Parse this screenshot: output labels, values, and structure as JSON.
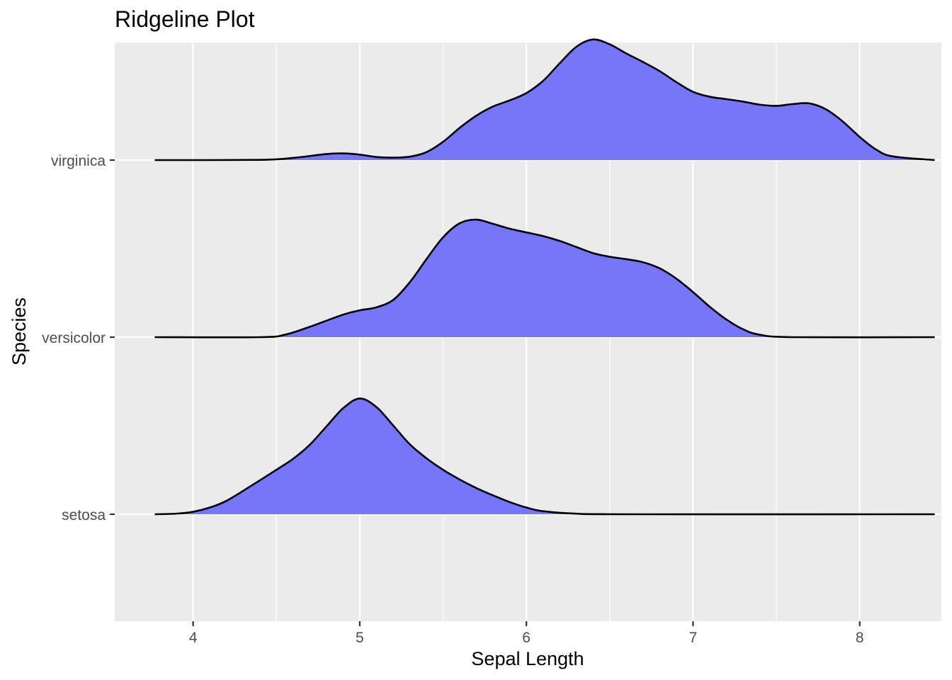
{
  "chart_data": {
    "type": "ridgeline",
    "title": "Ridgeline Plot",
    "xlabel": "Sepal Length",
    "ylabel": "Species",
    "xlim": [
      3.53,
      8.49
    ],
    "x_ticks": [
      4,
      5,
      6,
      7,
      8
    ],
    "x_tick_labels": [
      "4",
      "5",
      "6",
      "7",
      "8"
    ],
    "x_minor_ticks": [
      4.5,
      5.5,
      6.5,
      7.5,
      8.5
    ],
    "categories": [
      "setosa",
      "versicolor",
      "virginica"
    ],
    "grid": true,
    "legend": "none",
    "colors": {
      "fill": "#7676F6",
      "outline": "#000000",
      "panel": "#EBEBEB",
      "grid": "#FFFFFF"
    },
    "series": [
      {
        "name": "setosa",
        "density_scaled": [
          [
            3.77,
            0.0
          ],
          [
            3.9,
            0.005
          ],
          [
            4.0,
            0.02
          ],
          [
            4.1,
            0.055
          ],
          [
            4.2,
            0.11
          ],
          [
            4.35,
            0.235
          ],
          [
            4.5,
            0.365
          ],
          [
            4.6,
            0.455
          ],
          [
            4.7,
            0.57
          ],
          [
            4.8,
            0.72
          ],
          [
            4.9,
            0.87
          ],
          [
            5.0,
            0.95
          ],
          [
            5.1,
            0.88
          ],
          [
            5.2,
            0.73
          ],
          [
            5.3,
            0.575
          ],
          [
            5.4,
            0.46
          ],
          [
            5.5,
            0.365
          ],
          [
            5.6,
            0.285
          ],
          [
            5.7,
            0.215
          ],
          [
            5.8,
            0.155
          ],
          [
            5.9,
            0.1
          ],
          [
            6.0,
            0.055
          ],
          [
            6.1,
            0.025
          ],
          [
            6.3,
            0.005
          ],
          [
            6.6,
            0.0
          ],
          [
            8.45,
            0.0
          ]
        ]
      },
      {
        "name": "versicolor",
        "density_scaled": [
          [
            3.77,
            0.0
          ],
          [
            4.4,
            0.0
          ],
          [
            4.55,
            0.02
          ],
          [
            4.7,
            0.085
          ],
          [
            4.9,
            0.185
          ],
          [
            5.0,
            0.22
          ],
          [
            5.1,
            0.245
          ],
          [
            5.2,
            0.305
          ],
          [
            5.3,
            0.45
          ],
          [
            5.4,
            0.64
          ],
          [
            5.5,
            0.82
          ],
          [
            5.6,
            0.935
          ],
          [
            5.7,
            0.965
          ],
          [
            5.8,
            0.93
          ],
          [
            5.9,
            0.89
          ],
          [
            6.0,
            0.86
          ],
          [
            6.1,
            0.83
          ],
          [
            6.2,
            0.79
          ],
          [
            6.3,
            0.74
          ],
          [
            6.4,
            0.69
          ],
          [
            6.5,
            0.66
          ],
          [
            6.6,
            0.64
          ],
          [
            6.7,
            0.615
          ],
          [
            6.8,
            0.565
          ],
          [
            6.9,
            0.48
          ],
          [
            7.0,
            0.37
          ],
          [
            7.1,
            0.25
          ],
          [
            7.2,
            0.145
          ],
          [
            7.3,
            0.065
          ],
          [
            7.4,
            0.02
          ],
          [
            7.6,
            0.0
          ],
          [
            8.45,
            0.0
          ]
        ]
      },
      {
        "name": "virginica",
        "density_scaled": [
          [
            3.77,
            0.0
          ],
          [
            4.4,
            0.002
          ],
          [
            4.6,
            0.018
          ],
          [
            4.8,
            0.05
          ],
          [
            4.9,
            0.055
          ],
          [
            5.0,
            0.045
          ],
          [
            5.1,
            0.025
          ],
          [
            5.2,
            0.02
          ],
          [
            5.3,
            0.028
          ],
          [
            5.4,
            0.065
          ],
          [
            5.5,
            0.15
          ],
          [
            5.6,
            0.265
          ],
          [
            5.7,
            0.365
          ],
          [
            5.8,
            0.44
          ],
          [
            5.9,
            0.49
          ],
          [
            6.0,
            0.55
          ],
          [
            6.1,
            0.65
          ],
          [
            6.2,
            0.795
          ],
          [
            6.3,
            0.93
          ],
          [
            6.4,
            0.99
          ],
          [
            6.5,
            0.95
          ],
          [
            6.6,
            0.875
          ],
          [
            6.7,
            0.805
          ],
          [
            6.8,
            0.73
          ],
          [
            6.9,
            0.64
          ],
          [
            7.0,
            0.56
          ],
          [
            7.1,
            0.52
          ],
          [
            7.2,
            0.5
          ],
          [
            7.3,
            0.48
          ],
          [
            7.4,
            0.455
          ],
          [
            7.5,
            0.445
          ],
          [
            7.6,
            0.46
          ],
          [
            7.7,
            0.465
          ],
          [
            7.8,
            0.415
          ],
          [
            7.9,
            0.315
          ],
          [
            8.0,
            0.19
          ],
          [
            8.1,
            0.085
          ],
          [
            8.2,
            0.03
          ],
          [
            8.45,
            0.0
          ]
        ]
      }
    ]
  }
}
